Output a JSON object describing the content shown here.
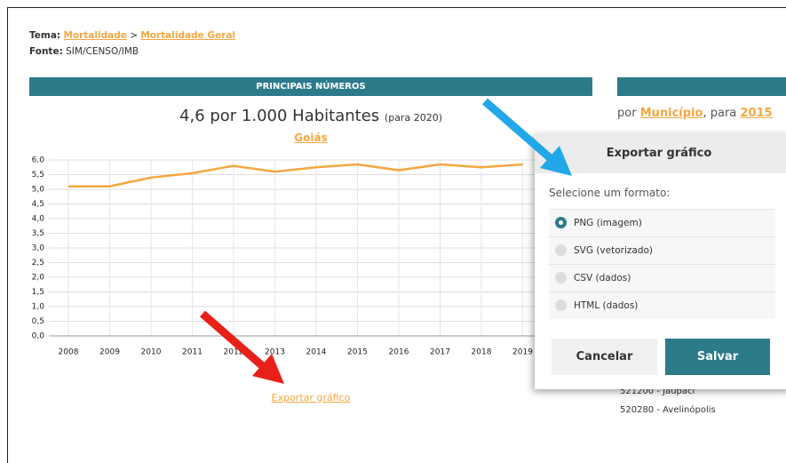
{
  "header": {
    "tema_label": "Tema:",
    "tema_link": "Mortalidade",
    "separator": ">",
    "subtema_link": "Mortalidade Geral",
    "fonte_label": "Fonte:",
    "fonte_value": "SIM/CENSO/IMB"
  },
  "panel": {
    "title": "PRINCIPAIS NÚMEROS",
    "headline": "4,6 por 1.000 Habitantes",
    "headline_note": "(para 2020)",
    "region": "Goiás",
    "export_link": "Exportar gráfico"
  },
  "chart_data": {
    "type": "line",
    "categories": [
      "2008",
      "2009",
      "2010",
      "2011",
      "2012",
      "2013",
      "2014",
      "2015",
      "2016",
      "2017",
      "2018",
      "2019"
    ],
    "series": [
      {
        "name": "Goiás",
        "color": "#f5a640",
        "values": [
          5.1,
          5.1,
          5.4,
          5.55,
          5.8,
          5.6,
          5.75,
          5.85,
          5.65,
          5.85,
          5.75,
          5.85
        ]
      }
    ],
    "ylim": [
      0,
      6
    ],
    "yticks": [
      {
        "value": 0,
        "label": "0,0"
      },
      {
        "value": 0.5,
        "label": "0,5"
      },
      {
        "value": 1,
        "label": "1,0"
      },
      {
        "value": 1.5,
        "label": "1,5"
      },
      {
        "value": 2,
        "label": "2,0"
      },
      {
        "value": 2.5,
        "label": "2,5"
      },
      {
        "value": 3,
        "label": "3,0"
      },
      {
        "value": 3.5,
        "label": "3,5"
      },
      {
        "value": 4,
        "label": "4,0"
      },
      {
        "value": 4.5,
        "label": "4,5"
      },
      {
        "value": 5,
        "label": "5,0"
      },
      {
        "value": 5.5,
        "label": "5,5"
      },
      {
        "value": 6,
        "label": "6,0"
      }
    ],
    "grid": true
  },
  "side": {
    "prefix": "por",
    "link": "Município",
    "middle": ", para",
    "year": "2015",
    "list": [
      "521200 - Jaupaci",
      "520280 - Avelinópolis"
    ]
  },
  "dialog": {
    "title": "Exportar gráfico",
    "prompt": "Selecione um formato:",
    "options": [
      "PNG (imagem)",
      "SVG (vetorizado)",
      "CSV (dados)",
      "HTML (dados)"
    ],
    "selected": 0,
    "cancel": "Cancelar",
    "save": "Salvar"
  }
}
